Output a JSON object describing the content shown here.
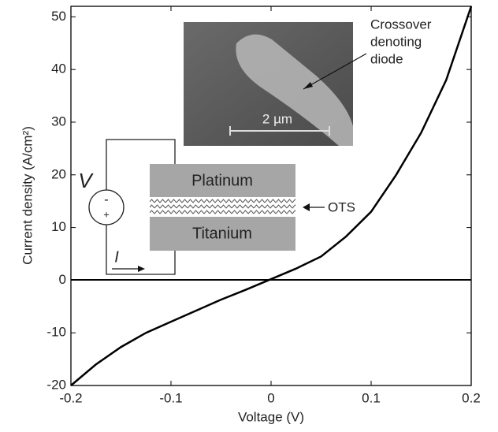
{
  "chart_data": {
    "type": "line",
    "xlabel": "Voltage (V)",
    "ylabel": "Current density (A/cm²)",
    "x": [
      -0.2,
      -0.175,
      -0.15,
      -0.125,
      -0.1,
      -0.075,
      -0.05,
      -0.025,
      0,
      0.025,
      0.05,
      0.075,
      0.1,
      0.125,
      0.15,
      0.175,
      0.2
    ],
    "series": [
      {
        "color": "#000000",
        "values": [
          -20,
          -16,
          -12.7,
          -10,
          -7.9,
          -5.8,
          -3.7,
          -1.8,
          0.2,
          2.2,
          4.5,
          8.3,
          13,
          20,
          28,
          38,
          52
        ]
      }
    ],
    "xlim": [
      -0.2,
      0.2
    ],
    "xticks": [
      -0.2,
      -0.1,
      0,
      0.1,
      0.2
    ],
    "ylim": [
      -20,
      52
    ],
    "yticks": [
      -20,
      -10,
      0,
      10,
      20,
      30,
      40,
      50
    ],
    "grid": false,
    "annotations": {
      "sem_label": [
        "Crossover",
        "denoting",
        "diode"
      ],
      "scale_bar": "2 µm",
      "source": "V",
      "source_minus": "-",
      "source_plus": "+",
      "current": "I",
      "top_electrode": "Platinum",
      "layer": "OTS",
      "bottom_electrode": "Titanium"
    }
  }
}
